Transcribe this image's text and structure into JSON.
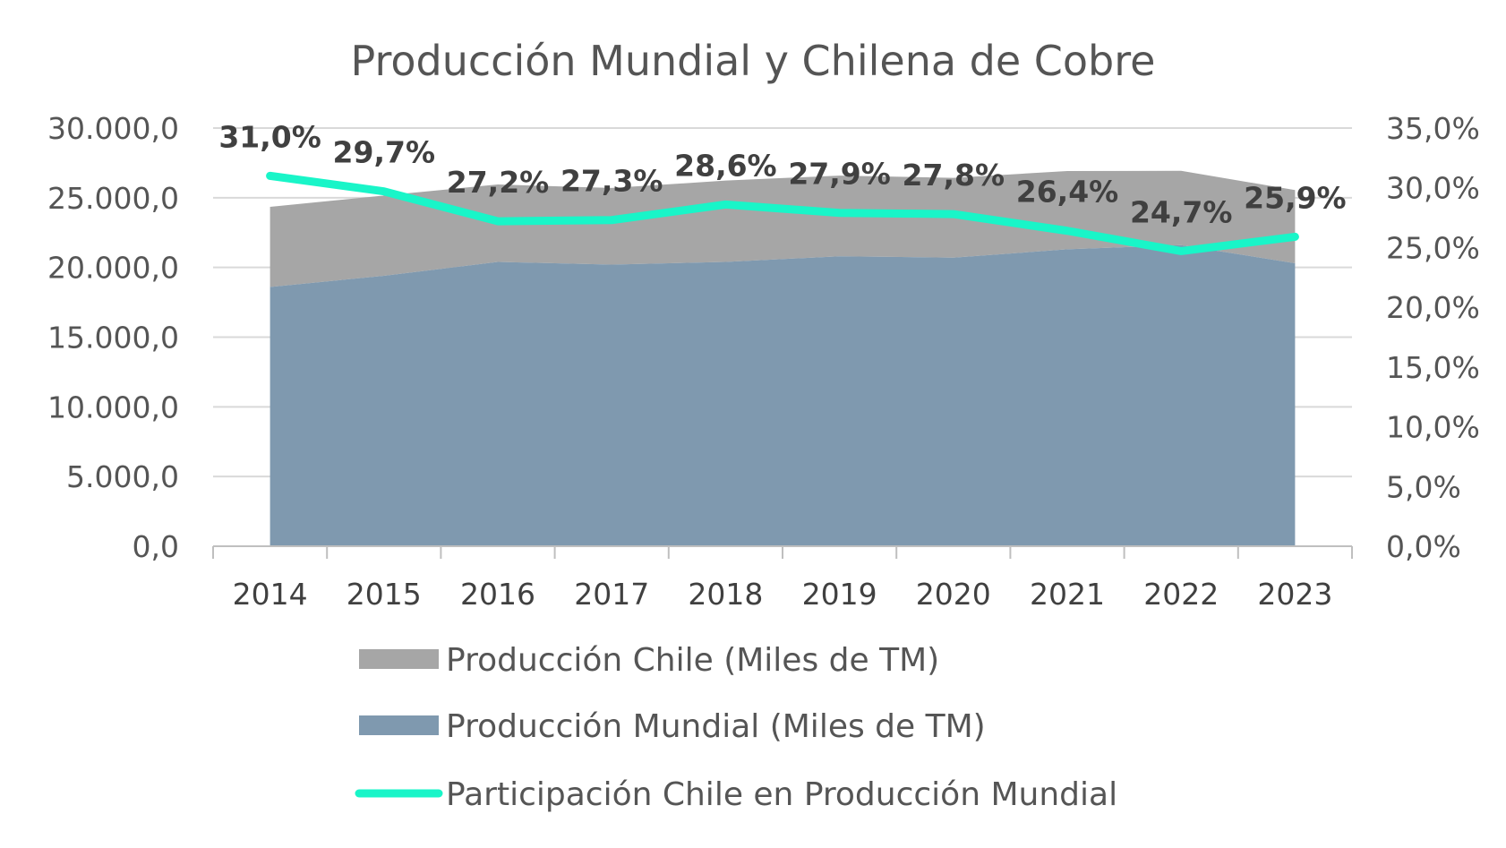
{
  "chart_data": {
    "type": "area",
    "title": "Producción Mundial y Chilena de Cobre",
    "categories": [
      "2014",
      "2015",
      "2016",
      "2017",
      "2018",
      "2019",
      "2020",
      "2021",
      "2022",
      "2023"
    ],
    "series": [
      {
        "name": "Producción Chile (Miles de TM)",
        "kind": "area",
        "axis": "left",
        "stacked": true,
        "color": "#A6A6A6",
        "values": [
          5750,
          5760,
          5550,
          5500,
          5830,
          5790,
          5730,
          5620,
          5330,
          5250
        ]
      },
      {
        "name": "Producción Mundial (Miles de TM)",
        "kind": "area",
        "axis": "left",
        "color": "#7F99AF",
        "values": [
          18600,
          19400,
          20400,
          20200,
          20400,
          20800,
          20700,
          21300,
          21600,
          20300
        ]
      },
      {
        "name": "Participación Chile en Producción Mundial",
        "kind": "line",
        "axis": "right",
        "color": "#19F5C8",
        "values": [
          31.0,
          29.7,
          27.2,
          27.3,
          28.6,
          27.9,
          27.8,
          26.4,
          24.7,
          25.9
        ],
        "labels": [
          "31,0%",
          "29,7%",
          "27,2%",
          "27,3%",
          "28,6%",
          "27,9%",
          "27,8%",
          "26,4%",
          "24,7%",
          "25,9%"
        ]
      }
    ],
    "y_left": {
      "min": 0,
      "max": 30000,
      "ticks": [
        0,
        5000,
        10000,
        15000,
        20000,
        25000,
        30000
      ],
      "tick_labels": [
        "0,0",
        "5.000,0",
        "10.000,0",
        "15.000,0",
        "20.000,0",
        "25.000,0",
        "30.000,0"
      ]
    },
    "y_right": {
      "min": 0,
      "max": 35,
      "ticks": [
        0,
        5,
        10,
        15,
        20,
        25,
        30,
        35
      ],
      "tick_labels": [
        "0,0%",
        "5,0%",
        "10,0%",
        "15,0%",
        "20,0%",
        "25,0%",
        "30,0%",
        "35,0%"
      ]
    },
    "grid": true,
    "legend_position": "bottom"
  }
}
